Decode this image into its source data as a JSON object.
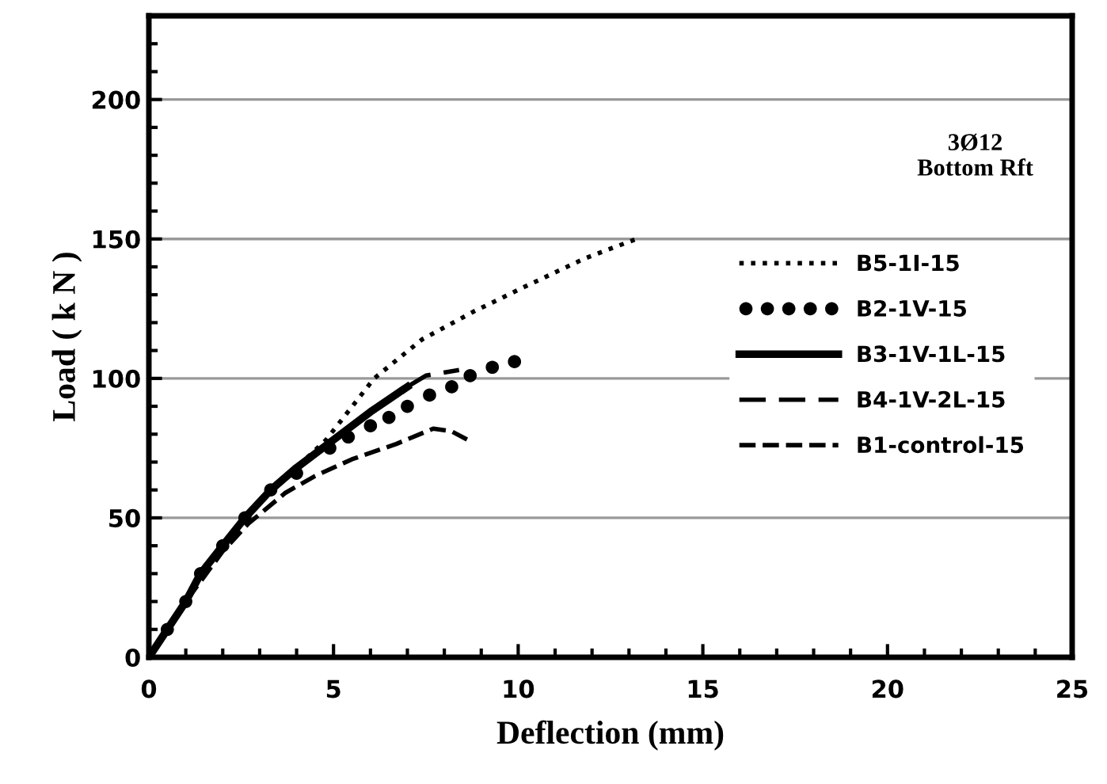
{
  "chart_data": {
    "type": "line",
    "xlabel": "Deflection (mm)",
    "ylabel": "Load ( k N )",
    "xlim": [
      0,
      25
    ],
    "ylim": [
      0,
      230
    ],
    "xticks": [
      0,
      5,
      10,
      15,
      20,
      25
    ],
    "yticks": [
      0,
      50,
      100,
      150,
      200
    ],
    "grid": "y",
    "legend": "right",
    "annotations": [
      "3Ø12\nBottom Rft"
    ],
    "series": [
      {
        "name": "B5-1I-15",
        "color": "#000000",
        "line_style": "dotted",
        "marker": "none",
        "x": [
          0,
          0.5,
          1,
          1.4,
          2,
          2.6,
          3.3,
          4,
          4.8,
          6.1,
          7.4,
          8.8,
          10.2,
          11.8,
          13.2
        ],
        "values": [
          0,
          10,
          20,
          30,
          40,
          50,
          60,
          68,
          78,
          100,
          114,
          124,
          133,
          143,
          150
        ]
      },
      {
        "name": "B2-1V-15",
        "type": "scatter",
        "color": "#000000",
        "marker": "circle",
        "x": [
          0.5,
          1,
          1.4,
          2,
          2.6,
          3.3,
          4,
          4.9,
          5.4,
          6,
          6.5,
          7,
          7.6,
          8.2,
          8.7,
          9.3,
          9.9
        ],
        "values": [
          10,
          20,
          30,
          40,
          50,
          60,
          66,
          75,
          79,
          83,
          86,
          90,
          94,
          97,
          101,
          104,
          106
        ]
      },
      {
        "name": "B3-1V-1L-15",
        "color": "#000000",
        "line_style": "solid",
        "marker": "none",
        "x": [
          0,
          0.5,
          1,
          1.4,
          2,
          2.6,
          3.3,
          4,
          5,
          6,
          7
        ],
        "values": [
          0,
          10,
          20,
          30,
          40,
          50,
          60,
          68,
          78,
          88,
          97
        ]
      },
      {
        "name": "B4-1V-2L-15",
        "color": "#000000",
        "line_style": "dashed",
        "marker": "none",
        "x": [
          7,
          7.5,
          8.4
        ],
        "values": [
          97,
          101,
          103
        ]
      },
      {
        "name": "B1-control-15",
        "color": "#000000",
        "line_style": "dashed",
        "marker": "none",
        "x": [
          0,
          1,
          2,
          2.7,
          3.7,
          4.5,
          5.5,
          6.7,
          7.7,
          8.2,
          8.7
        ],
        "values": [
          0,
          20,
          38,
          48,
          59,
          65,
          71,
          76.5,
          82,
          81,
          77.5
        ]
      }
    ]
  }
}
